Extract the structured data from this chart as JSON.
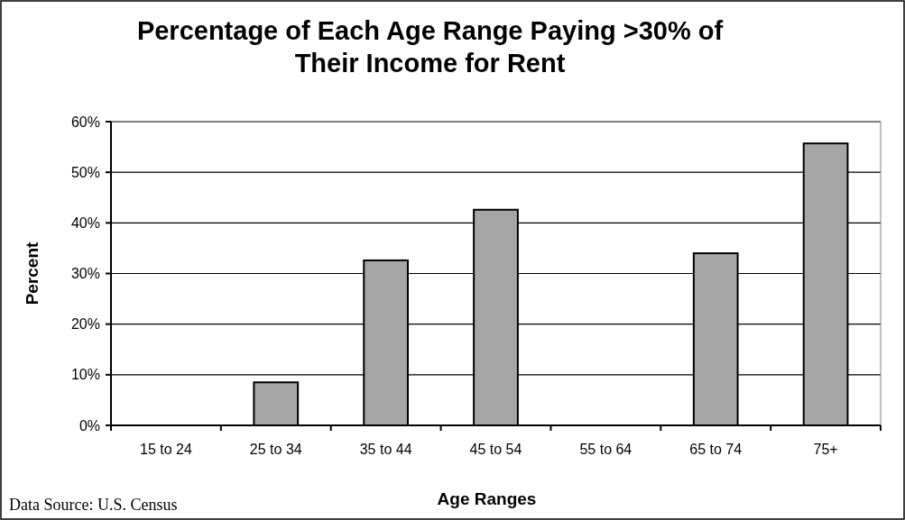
{
  "chart_data": {
    "type": "bar",
    "title": "Percentage of Each Age Range Paying >30% of Their Income for Rent",
    "xlabel": "Age Ranges",
    "ylabel": "Percent",
    "annotations": [
      "Data Source: U.S. Census"
    ],
    "categories": [
      "15 to 24",
      "25 to 34",
      "35 to 44",
      "45 to 54",
      "55 to 64",
      "65 to 74",
      "75+"
    ],
    "values": [
      0,
      8.5,
      32.6,
      42.6,
      0,
      34,
      55.7
    ],
    "color": "#a6a6a6",
    "ylim": [
      0,
      60
    ],
    "yticks": [
      {
        "value": 0,
        "label": "0%"
      },
      {
        "value": 10,
        "label": "10%"
      },
      {
        "value": 20,
        "label": "20%"
      },
      {
        "value": 30,
        "label": "30%"
      },
      {
        "value": 40,
        "label": "40%"
      },
      {
        "value": 50,
        "label": "50%"
      },
      {
        "value": 60,
        "label": "60%"
      }
    ],
    "grid": "y"
  }
}
